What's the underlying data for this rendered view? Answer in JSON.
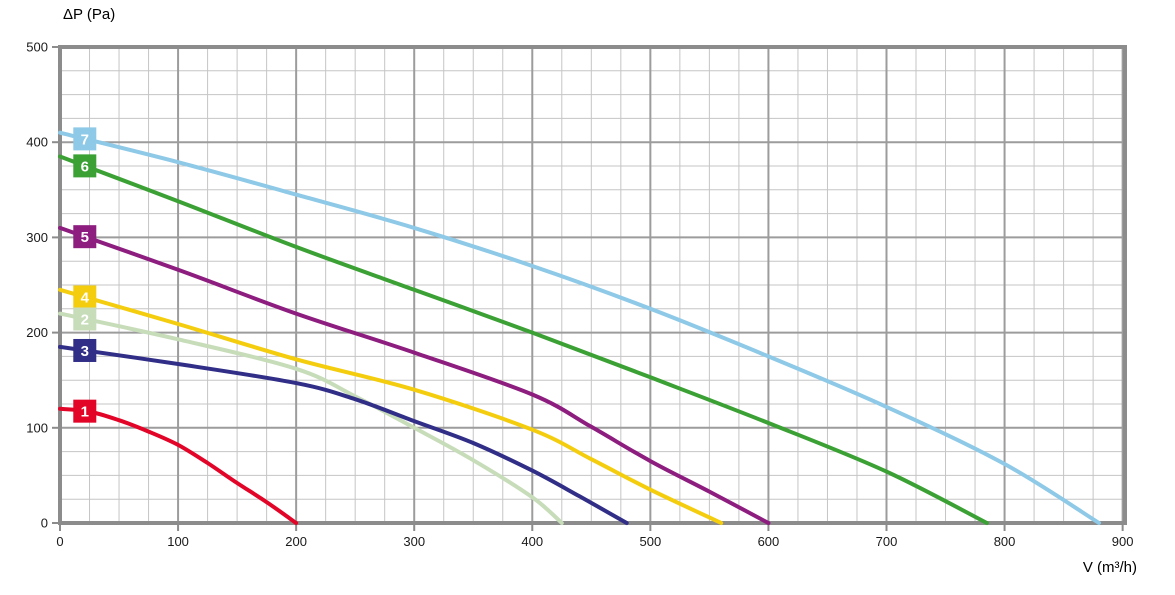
{
  "chart_data": {
    "type": "line",
    "title": "",
    "xlabel": "V (m³/h)",
    "ylabel": "ΔP (Pa)",
    "xlim": [
      0,
      902
    ],
    "ylim": [
      0,
      500
    ],
    "x_ticks": [
      0,
      100,
      200,
      300,
      400,
      500,
      600,
      700,
      800,
      900
    ],
    "y_ticks": [
      0,
      100,
      200,
      300,
      400,
      500
    ],
    "x_major_step": 100,
    "x_minor_step": 25,
    "y_major_step": 100,
    "y_minor_step": 25,
    "grid": "major+minor",
    "legend_position": "on-curve-left",
    "colors": {
      "background": "#ffffff",
      "frame": "#8c8c8c",
      "grid_major": "#9c9c9c",
      "grid_minor": "#c5c5c5",
      "tick_label": "#1a1a1a",
      "marker_text": "#ffffff"
    },
    "series": [
      {
        "name": "7",
        "color": "#8ec9e7",
        "label_v": 21,
        "points": [
          [
            0,
            410
          ],
          [
            100,
            379
          ],
          [
            200,
            345
          ],
          [
            300,
            310
          ],
          [
            400,
            270
          ],
          [
            500,
            225
          ],
          [
            600,
            175
          ],
          [
            700,
            122
          ],
          [
            800,
            62
          ],
          [
            880,
            0
          ]
        ]
      },
      {
        "name": "6",
        "color": "#3ba135",
        "label_v": 21,
        "points": [
          [
            0,
            385
          ],
          [
            100,
            338
          ],
          [
            200,
            290
          ],
          [
            300,
            245
          ],
          [
            400,
            200
          ],
          [
            500,
            153
          ],
          [
            600,
            105
          ],
          [
            700,
            54
          ],
          [
            785,
            0
          ]
        ]
      },
      {
        "name": "5",
        "color": "#8d1d7f",
        "label_v": 21,
        "points": [
          [
            0,
            310
          ],
          [
            100,
            266
          ],
          [
            200,
            220
          ],
          [
            300,
            179
          ],
          [
            400,
            135
          ],
          [
            450,
            101
          ],
          [
            500,
            65
          ],
          [
            550,
            33
          ],
          [
            600,
            0
          ]
        ]
      },
      {
        "name": "4",
        "color": "#f3cd0e",
        "label_v": 21,
        "points": [
          [
            0,
            245
          ],
          [
            100,
            209
          ],
          [
            200,
            172
          ],
          [
            300,
            140
          ],
          [
            400,
            98
          ],
          [
            450,
            67
          ],
          [
            500,
            35
          ],
          [
            560,
            0
          ]
        ]
      },
      {
        "name": "2",
        "color": "#c7dcb9",
        "label_v": 21,
        "points": [
          [
            0,
            220
          ],
          [
            100,
            193
          ],
          [
            200,
            162
          ],
          [
            250,
            133
          ],
          [
            300,
            100
          ],
          [
            350,
            66
          ],
          [
            400,
            27
          ],
          [
            425,
            0
          ]
        ]
      },
      {
        "name": "3",
        "color": "#312e87",
        "label_v": 21,
        "points": [
          [
            0,
            185
          ],
          [
            100,
            167
          ],
          [
            200,
            147
          ],
          [
            250,
            130
          ],
          [
            300,
            107
          ],
          [
            350,
            84
          ],
          [
            400,
            55
          ],
          [
            440,
            28
          ],
          [
            480,
            0
          ]
        ]
      },
      {
        "name": "1",
        "color": "#e20528",
        "label_v": 21,
        "points": [
          [
            0,
            120
          ],
          [
            25,
            117
          ],
          [
            50,
            108
          ],
          [
            75,
            96
          ],
          [
            100,
            82
          ],
          [
            125,
            63
          ],
          [
            150,
            42
          ],
          [
            175,
            22
          ],
          [
            200,
            0
          ]
        ]
      }
    ]
  }
}
